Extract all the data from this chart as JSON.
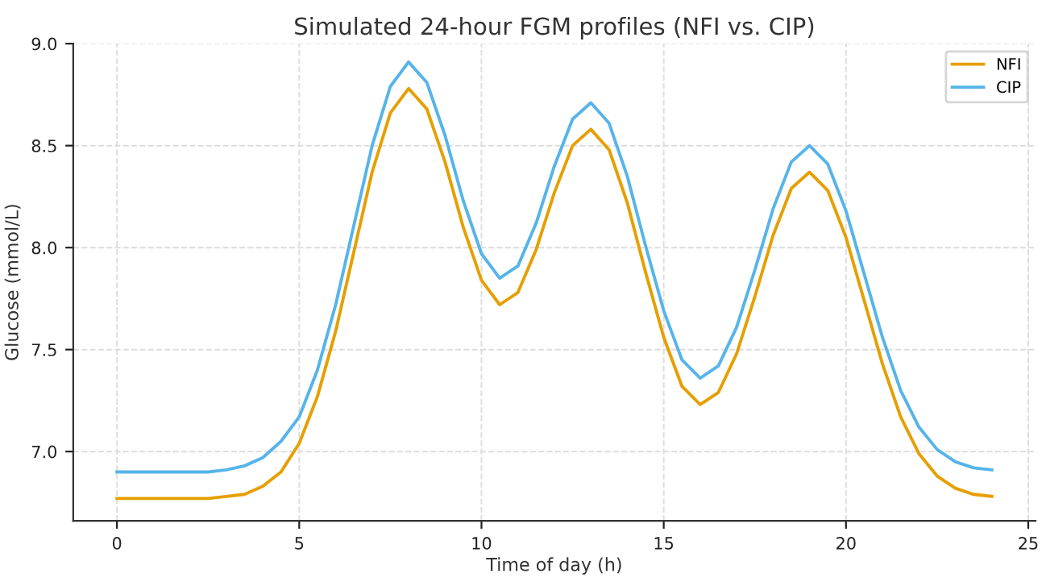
{
  "chart_data": {
    "type": "line",
    "title": "Simulated 24-hour FGM profiles (NFI vs. CIP)",
    "xlabel": "Time of day (h)",
    "ylabel": "Glucose (mmol/L)",
    "x": [
      0,
      0.5,
      1,
      1.5,
      2,
      2.5,
      3,
      3.5,
      4,
      4.5,
      5,
      5.5,
      6,
      6.5,
      7,
      7.5,
      8,
      8.5,
      9,
      9.5,
      10,
      10.5,
      11,
      11.5,
      12,
      12.5,
      13,
      13.5,
      14,
      14.5,
      15,
      15.5,
      16,
      16.5,
      17,
      17.5,
      18,
      18.5,
      19,
      19.5,
      20,
      20.5,
      21,
      21.5,
      22,
      22.5,
      23,
      23.5,
      24
    ],
    "series": [
      {
        "name": "NFI",
        "color": "#e69f00",
        "values": [
          6.77,
          6.77,
          6.77,
          6.77,
          6.77,
          6.77,
          6.78,
          6.79,
          6.83,
          6.9,
          7.04,
          7.27,
          7.59,
          7.98,
          8.37,
          8.66,
          8.78,
          8.68,
          8.42,
          8.1,
          7.84,
          7.72,
          7.78,
          7.99,
          8.27,
          8.5,
          8.58,
          8.48,
          8.22,
          7.88,
          7.56,
          7.32,
          7.23,
          7.29,
          7.48,
          7.76,
          8.06,
          8.29,
          8.37,
          8.28,
          8.05,
          7.74,
          7.43,
          7.17,
          6.99,
          6.88,
          6.82,
          6.79,
          6.78
        ]
      },
      {
        "name": "CIP",
        "color": "#56b4e9",
        "values": [
          6.9,
          6.9,
          6.9,
          6.9,
          6.9,
          6.9,
          6.91,
          6.93,
          6.97,
          7.05,
          7.17,
          7.4,
          7.72,
          8.11,
          8.5,
          8.79,
          8.91,
          8.81,
          8.55,
          8.23,
          7.97,
          7.85,
          7.91,
          8.12,
          8.4,
          8.63,
          8.71,
          8.61,
          8.35,
          8.01,
          7.69,
          7.45,
          7.36,
          7.42,
          7.61,
          7.89,
          8.19,
          8.42,
          8.5,
          8.41,
          8.18,
          7.87,
          7.56,
          7.3,
          7.12,
          7.01,
          6.95,
          6.92,
          6.91
        ]
      }
    ],
    "xlim": [
      -1.2,
      25.2
    ],
    "ylim": [
      6.66,
      9.0
    ],
    "xticks": [
      0,
      5,
      10,
      15,
      20,
      25
    ],
    "yticks": [
      {
        "value": 7.0,
        "label": "7.0"
      },
      {
        "value": 7.5,
        "label": "7.5"
      },
      {
        "value": 8.0,
        "label": "8.0"
      },
      {
        "value": 8.5,
        "label": "8.5"
      },
      {
        "value": 9.0,
        "label": "9.0"
      }
    ],
    "grid": true,
    "legend": "top right",
    "line_style": "solid"
  }
}
